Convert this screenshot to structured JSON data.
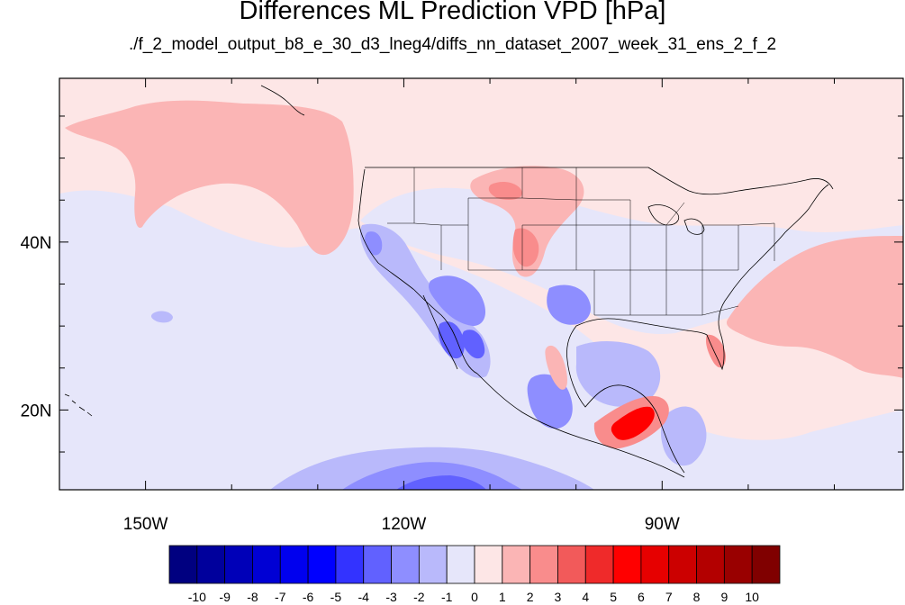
{
  "title": "Differences ML Prediction VPD [hPa]",
  "subtitle": "./f_2_model_output_b8_e_30_d3_lneg4/diffs_nn_dataset_2007_week_31_ens_2_f_2",
  "map": {
    "lon_range": [
      -160,
      -62
    ],
    "lat_range": [
      10.5,
      59.5
    ],
    "x_ticks": [
      {
        "lon": -150,
        "label": "150W"
      },
      {
        "lon": -120,
        "label": "120W"
      },
      {
        "lon": -90,
        "label": "90W"
      }
    ],
    "y_ticks": [
      {
        "lat": 40,
        "label": "40N"
      },
      {
        "lat": 20,
        "label": "20N"
      }
    ],
    "background_color": "#fde6e6"
  },
  "colorbar": {
    "labels": [
      "-10",
      "-9",
      "-8",
      "-7",
      "-6",
      "-5",
      "-4",
      "-3",
      "-2",
      "-1",
      "0",
      "1",
      "2",
      "3",
      "4",
      "5",
      "6",
      "7",
      "8",
      "9",
      "10"
    ],
    "colors": [
      "#000080",
      "#00009c",
      "#0000b8",
      "#0000d4",
      "#0000ee",
      "#0000ff",
      "#3333ff",
      "#6161ff",
      "#8e8eff",
      "#b9b9fb",
      "#e6e6fa",
      "#fde6e6",
      "#fbb5b5",
      "#f98c8c",
      "#f25a5a",
      "#ef2a2a",
      "#ff0000",
      "#e60000",
      "#cc0000",
      "#b30000",
      "#990000",
      "#800000"
    ]
  },
  "colors": {
    "neutral_pos": "#fde6e6",
    "neutral_neg": "#e6e6fa",
    "light_red": "#fbb5b5",
    "mid_red": "#f98c8c",
    "red": "#f25a5a",
    "strong_red": "#ff0000",
    "light_blue": "#b9b9fb",
    "mid_blue": "#8e8eff",
    "blue": "#6161ff",
    "strong_blue": "#3333ff",
    "coast": "#000000"
  }
}
